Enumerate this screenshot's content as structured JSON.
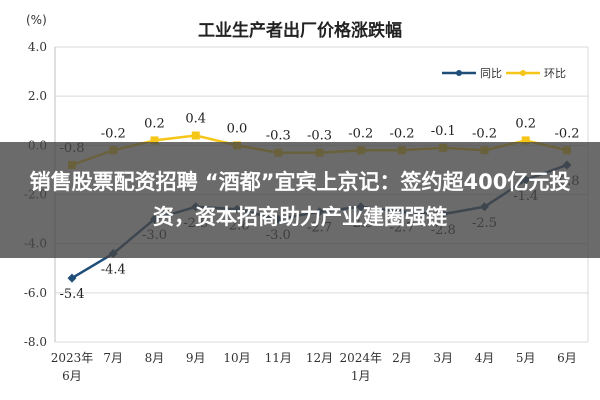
{
  "overlay": {
    "headline": "销售股票配资招聘 “酒都”宜宾上京记：签约超400亿元投资，资本招商助力产业建圈强链"
  },
  "colors": {
    "yoy": "#1f4e79",
    "mom": "#f5c518"
  },
  "chart_data": {
    "type": "line",
    "title": "工业生产者出厂价格涨跌幅",
    "ylabel": "(%)",
    "ylim": [
      -8.0,
      4.0
    ],
    "yticks": [
      "4.0",
      "2.0",
      "0.0",
      "-2.0",
      "-4.0",
      "-6.0",
      "-8.0"
    ],
    "ytick_values": [
      4,
      2,
      0,
      -2,
      -4,
      -6,
      -8
    ],
    "grid": true,
    "legend": "top-right",
    "categories": [
      {
        "line1": "2023年",
        "line2": "6月"
      },
      {
        "line1": "7月",
        "line2": ""
      },
      {
        "line1": "8月",
        "line2": ""
      },
      {
        "line1": "9月",
        "line2": ""
      },
      {
        "line1": "10月",
        "line2": ""
      },
      {
        "line1": "11月",
        "line2": ""
      },
      {
        "line1": "12月",
        "line2": ""
      },
      {
        "line1": "2024年",
        "line2": "1月"
      },
      {
        "line1": "2月",
        "line2": ""
      },
      {
        "line1": "3月",
        "line2": ""
      },
      {
        "line1": "4月",
        "line2": ""
      },
      {
        "line1": "5月",
        "line2": ""
      },
      {
        "line1": "6月",
        "line2": ""
      }
    ],
    "series": [
      {
        "name": "同比",
        "values": [
          -5.4,
          -4.4,
          -3.0,
          -2.5,
          -2.6,
          -3.0,
          -2.7,
          -2.5,
          -2.7,
          -2.8,
          -2.5,
          -1.4,
          -0.8
        ],
        "labels": [
          "-5.4",
          "-4.4",
          "-3.0",
          "-2.5",
          "-2.6",
          "-3.0",
          "-2.7",
          "-2.5",
          "-2.7",
          "-2.8",
          "-2.5",
          "-1.4",
          "-0.8"
        ]
      },
      {
        "name": "环比",
        "values": [
          -0.8,
          -0.2,
          0.2,
          0.4,
          0.0,
          -0.3,
          -0.3,
          -0.2,
          -0.2,
          -0.1,
          -0.2,
          0.2,
          -0.2
        ],
        "labels": [
          "-0.8",
          "-0.2",
          "0.2",
          "0.4",
          "0.0",
          "-0.3",
          "-0.3",
          "-0.2",
          "-0.2",
          "-0.1",
          "-0.2",
          "0.2",
          "-0.2"
        ]
      }
    ]
  }
}
